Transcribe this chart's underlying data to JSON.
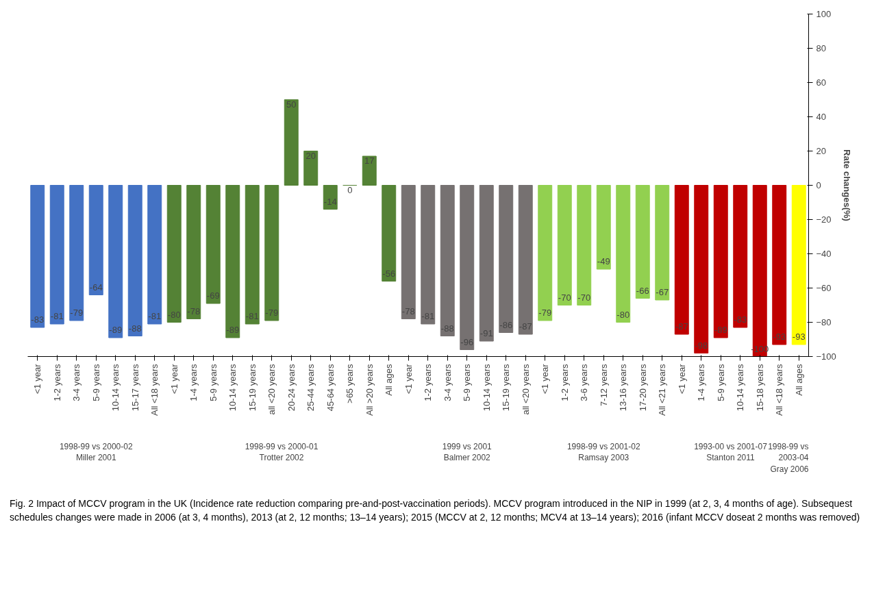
{
  "chart_data": {
    "type": "bar",
    "categories": [
      "<1 year",
      "1-2 years",
      "3-4 years",
      "5-9 years",
      "10-14 years",
      "15-17 years",
      "All <18 years",
      "<1 year",
      "1-4 years",
      "5-9 years",
      "10-14 years",
      "15-19 years",
      "all <20 years",
      "20-24 years",
      "25-44 years",
      "45-64 years",
      ">65 years",
      "All >20 years",
      "All ages",
      "<1 year",
      "1-2 years",
      "3-4 years",
      "5-9 years",
      "10-14 years",
      "15-19 years",
      "all <20 years",
      "<1 year",
      "1-2 years",
      "3-6 years",
      "7-12 years",
      "13-16 years",
      "17-20 years",
      "All <21 years",
      "<1 year",
      "1-4 years",
      "5-9 years",
      "10-14 years",
      "15-18 years",
      "All <18 years",
      "All ages"
    ],
    "series": [
      {
        "color": "#4472c4",
        "values": [
          -83,
          -81,
          -79,
          -64,
          -89,
          -88,
          -81,
          null,
          null,
          null,
          null,
          null,
          null,
          null,
          null,
          null,
          null,
          null,
          null,
          null,
          null,
          null,
          null,
          null,
          null,
          null,
          null,
          null,
          null,
          null,
          null,
          null,
          null,
          null,
          null,
          null,
          null,
          null,
          null,
          null
        ]
      },
      {
        "color": "#548235",
        "values": [
          null,
          null,
          null,
          null,
          null,
          null,
          null,
          -80,
          -78,
          -69,
          -89,
          -81,
          -79,
          50,
          20,
          -14,
          0,
          17,
          -56,
          null,
          null,
          null,
          null,
          null,
          null,
          null,
          null,
          null,
          null,
          null,
          null,
          null,
          null,
          null,
          null,
          null,
          null,
          null,
          null,
          null
        ]
      },
      {
        "color": "#767171",
        "values": [
          null,
          null,
          null,
          null,
          null,
          null,
          null,
          null,
          null,
          null,
          null,
          null,
          null,
          null,
          null,
          null,
          null,
          null,
          null,
          -78,
          -81,
          -88,
          -96,
          -91,
          -86,
          -87,
          null,
          null,
          null,
          null,
          null,
          null,
          null,
          null,
          null,
          null,
          null,
          null,
          null,
          null
        ]
      },
      {
        "color": "#92d050",
        "values": [
          null,
          null,
          null,
          null,
          null,
          null,
          null,
          null,
          null,
          null,
          null,
          null,
          null,
          null,
          null,
          null,
          null,
          null,
          null,
          null,
          null,
          null,
          null,
          null,
          null,
          null,
          -79,
          -70,
          -70,
          -49,
          -80,
          -66,
          -67,
          null,
          null,
          null,
          null,
          null,
          null,
          null
        ]
      },
      {
        "color": "#c00000",
        "values": [
          null,
          null,
          null,
          null,
          null,
          null,
          null,
          null,
          null,
          null,
          null,
          null,
          null,
          null,
          null,
          null,
          null,
          null,
          null,
          null,
          null,
          null,
          null,
          null,
          null,
          null,
          null,
          null,
          null,
          null,
          null,
          null,
          null,
          -87,
          -98,
          -89,
          -83,
          -100,
          -93,
          null
        ]
      },
      {
        "color": "#ffff00",
        "values": [
          null,
          null,
          null,
          null,
          null,
          null,
          null,
          null,
          null,
          null,
          null,
          null,
          null,
          null,
          null,
          null,
          null,
          null,
          null,
          null,
          null,
          null,
          null,
          null,
          null,
          null,
          null,
          null,
          null,
          null,
          null,
          null,
          null,
          null,
          null,
          null,
          null,
          null,
          null,
          -93
        ]
      }
    ],
    "ylabel": "Rate changes(%)",
    "ylim": [
      -100,
      100
    ],
    "yticks": [
      -100,
      -80,
      -60,
      -40,
      -20,
      0,
      20,
      40,
      60,
      80,
      100
    ],
    "data_labels": true,
    "grid": false,
    "annotations": [
      "1998-99 vs 2000-02\nMiller 2001",
      "1998-99 vs 2000-01\nTrotter 2002",
      "1999 vs 2001\nBalmer 2002",
      "1998-99 vs 2001-02\nRamsay 2003",
      "1993-00 vs 2001-07\nStanton 2011",
      "1998-99 vs\n2003-04\nGray 2006",
      "Fig. 2 Impact of MCCV program in the UK (Incidence rate reduction comparing pre-and-post-vaccination periods). MCCV program introduced in the NIP in 1999 (at 2, 3, 4 months of age). Subsequest schedules changes were made in 2006 (at 3, 4 months), 2013 (at 2, 12 months; 13–14 years); 2015 (MCCV at 2, 12 months; MCV4 at 13–14 years); 2016 (infant MCCV doseat 2 months was removed)"
    ]
  }
}
